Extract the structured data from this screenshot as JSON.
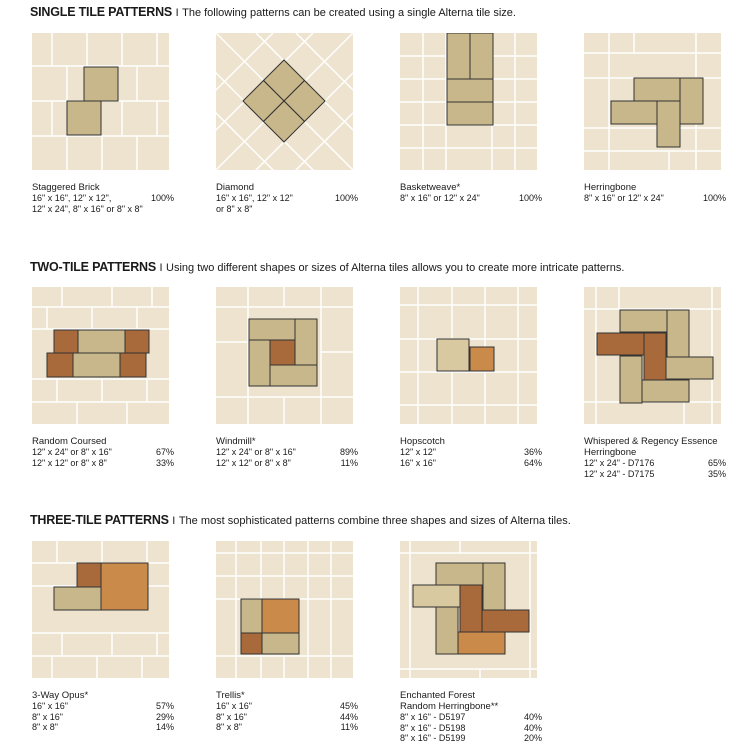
{
  "sections": [
    {
      "title": "SINGLE TILE PATTERNS",
      "sep": "I",
      "desc": "The following patterns can be created using a single Alterna tile size.",
      "patterns": [
        {
          "name": "Staggered Brick",
          "rows": [
            {
              "size": "16\" x 16\", 12\" x 12\",",
              "pct": "100%"
            },
            {
              "size": "12\" x 24\", 8\" x 16\"  or  8\" x 8\"",
              "pct": ""
            }
          ]
        },
        {
          "name": "Diamond",
          "rows": [
            {
              "size": "16\" x 16\", 12\" x 12\"",
              "pct": "100%"
            },
            {
              "size": "or  8\" x 8\"",
              "pct": ""
            }
          ]
        },
        {
          "name": "Basketweave*",
          "rows": [
            {
              "size": "8\" x 16\"  or  12\" x 24\"",
              "pct": "100%"
            }
          ]
        },
        {
          "name": "Herringbone",
          "rows": [
            {
              "size": "8\" x 16\"  or  12\" x 24\"",
              "pct": "100%"
            }
          ]
        }
      ]
    },
    {
      "title": "TWO-TILE PATTERNS",
      "sep": "I",
      "desc": "Using two different shapes or sizes of Alterna tiles allows you to create more intricate patterns.",
      "patterns": [
        {
          "name": "Random Coursed",
          "rows": [
            {
              "size": "12\" x 24\"  or  8\" x 16\"",
              "pct": "67%"
            },
            {
              "size": "12\" x 12\"  or  8\" x 8\"",
              "pct": "33%"
            }
          ]
        },
        {
          "name": "Windmill*",
          "rows": [
            {
              "size": "12\" x 24\"  or  8\" x 16\"",
              "pct": "89%"
            },
            {
              "size": "12\" x 12\"  or  8\" x 8\"",
              "pct": "11%"
            }
          ]
        },
        {
          "name": "Hopscotch",
          "rows": [
            {
              "size": "12\" x 12\"",
              "pct": "36%"
            },
            {
              "size": "16\" x 16\"",
              "pct": "64%"
            }
          ]
        },
        {
          "name": "Whispered & Regency Essence\nHerringbone",
          "rows": [
            {
              "size": "12\" x 24\" - D7176",
              "pct": "65%"
            },
            {
              "size": "12\" x 24\" - D7175",
              "pct": "35%"
            }
          ]
        }
      ]
    },
    {
      "title": "THREE-TILE PATTERNS",
      "sep": "I",
      "desc": "The most sophisticated patterns combine three shapes and sizes of Alterna tiles.",
      "patterns": [
        {
          "name": "3-Way Opus*",
          "rows": [
            {
              "size": "16\" x 16\"",
              "pct": "57%"
            },
            {
              "size": "8\" x 16\"",
              "pct": "29%"
            },
            {
              "size": "8\" x 8\"",
              "pct": "14%"
            }
          ]
        },
        {
          "name": "Trellis*",
          "rows": [
            {
              "size": "16\" x 16\"",
              "pct": "45%"
            },
            {
              "size": "8\" x 16\"",
              "pct": "44%"
            },
            {
              "size": "8\" x 8\"",
              "pct": "11%"
            }
          ]
        },
        {
          "name": "Enchanted Forest\nRandom Herringbone**",
          "rows": [
            {
              "size": "8\" x 16\" - D5197",
              "pct": "40%"
            },
            {
              "size": "8\" x 16\" - D5198",
              "pct": "40%"
            },
            {
              "size": "8\" x 16\" - D5199",
              "pct": "20%"
            }
          ]
        }
      ]
    }
  ],
  "colors": {
    "background": "#ede3cf",
    "grout": "#ffffff",
    "tile_tan": "#c8b78a",
    "tile_brown": "#a86a3a",
    "tile_gold": "#c98a4a",
    "tile_beige": "#d9c9a0"
  }
}
